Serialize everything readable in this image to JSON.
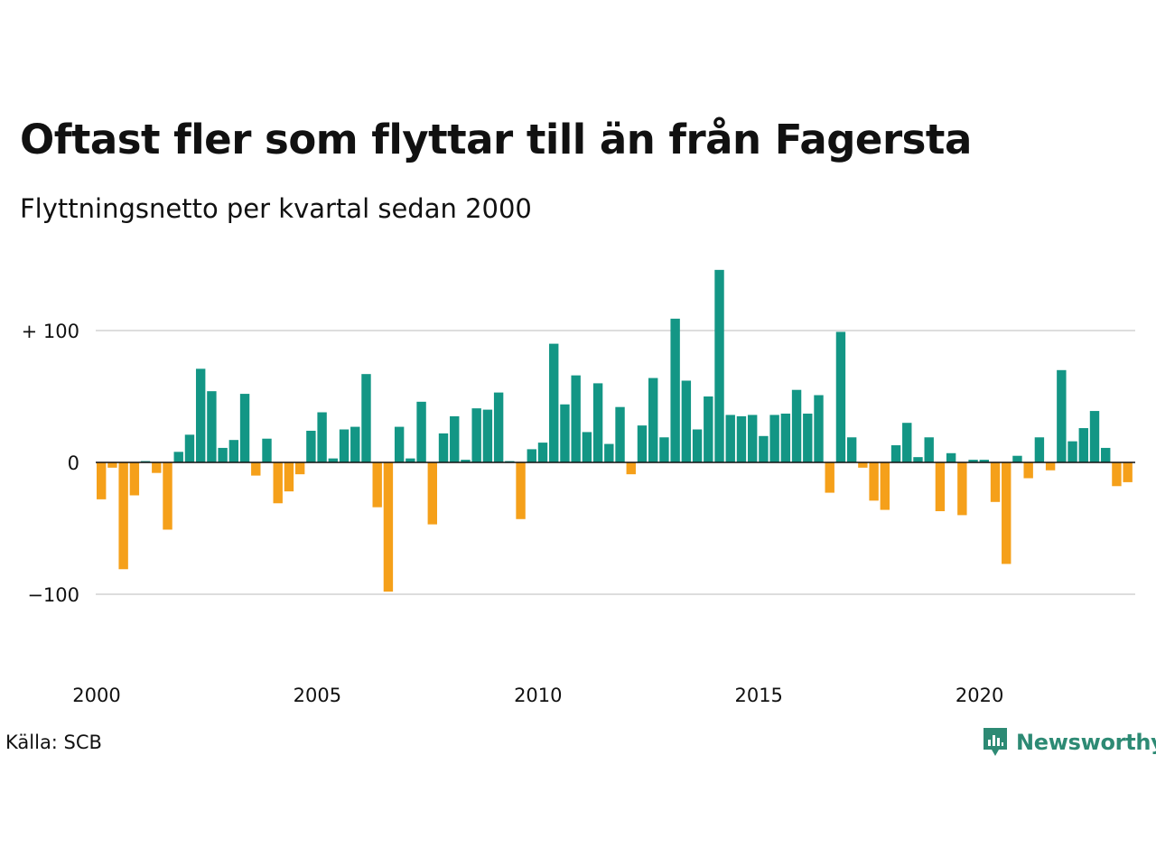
{
  "header": {
    "title": "Oftast fler som flyttar till än från Fagersta",
    "subtitle": "Flyttningsnetto per kvartal sedan 2000"
  },
  "footer": {
    "source": "Källa: SCB",
    "brand": "Newsworthy",
    "brand_color": "#2d8a74"
  },
  "colors": {
    "positive": "#139685",
    "negative": "#f5a01a",
    "grid": "#dddddd",
    "zero_line": "#111111"
  },
  "chart_data": {
    "type": "bar",
    "title": "Oftast fler som flyttar till än från Fagersta",
    "subtitle": "Flyttningsnetto per kvartal sedan 2000",
    "xlabel": "",
    "ylabel": "",
    "ylim": [
      -150,
      150
    ],
    "grid": true,
    "y_ticks": [
      {
        "value": 100,
        "label": "+ 100"
      },
      {
        "value": 0,
        "label": "0"
      },
      {
        "value": -100,
        "label": "−100"
      }
    ],
    "x_tick_labels": [
      "2000",
      "2005",
      "2010",
      "2015",
      "2020"
    ],
    "x_tick_index": [
      0,
      20,
      40,
      60,
      80
    ],
    "start": "2000 Q1",
    "frequency": "quarterly",
    "values": [
      -28,
      -4,
      -81,
      -25,
      1,
      -8,
      -51,
      8,
      21,
      71,
      54,
      11,
      17,
      52,
      -10,
      18,
      -31,
      -22,
      -9,
      24,
      38,
      3,
      25,
      27,
      67,
      -34,
      -98,
      27,
      3,
      46,
      -47,
      22,
      35,
      2,
      41,
      40,
      53,
      1,
      -43,
      10,
      15,
      90,
      44,
      66,
      23,
      60,
      14,
      42,
      -9,
      28,
      64,
      19,
      109,
      62,
      25,
      50,
      146,
      36,
      35,
      36,
      20,
      36,
      37,
      55,
      37,
      51,
      -23,
      99,
      19,
      -4,
      -29,
      -36,
      13,
      30,
      4,
      19,
      -37,
      7,
      -40,
      2,
      2,
      -30,
      -77,
      5,
      -12,
      19,
      -6,
      70,
      16,
      26,
      39,
      11,
      -18,
      -15
    ]
  }
}
